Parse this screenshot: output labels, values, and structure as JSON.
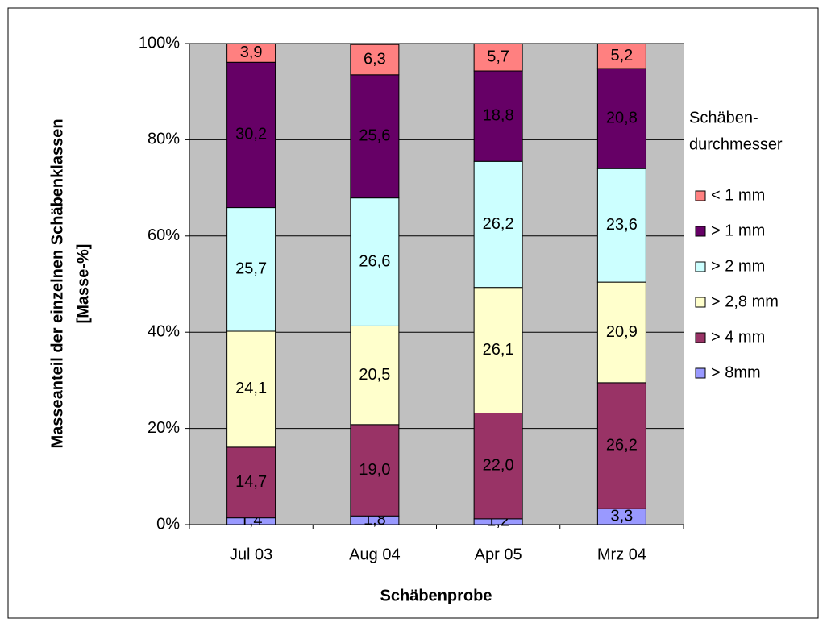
{
  "chart_data": {
    "type": "stacked_bar",
    "x_label": "Schäbenprobe",
    "y_label": [
      "Masseanteil der einzelnen Schäbenklassen",
      "[Masse-%]"
    ],
    "legend_title": [
      "Schäben-",
      "durchmesser"
    ],
    "legend": "right",
    "categories": [
      "Jul 03",
      "Aug 04",
      "Apr 05",
      "Mrz 04"
    ],
    "series": [
      {
        "name": "> 8mm",
        "color": "#9999ff",
        "values": [
          1.4,
          1.8,
          1.2,
          3.3
        ],
        "value_labels": [
          "1,4",
          "1,8",
          "1,2",
          "3,3"
        ]
      },
      {
        "name": "> 4 mm",
        "color": "#993366",
        "values": [
          14.7,
          19.0,
          22.0,
          26.2
        ],
        "value_labels": [
          "14,7",
          "19,0",
          "22,0",
          "26,2"
        ]
      },
      {
        "name": "> 2,8 mm",
        "color": "#ffffcc",
        "values": [
          24.1,
          20.5,
          26.1,
          20.9
        ],
        "value_labels": [
          "24,1",
          "20,5",
          "26,1",
          "20,9"
        ]
      },
      {
        "name": "> 2 mm",
        "color": "#ccffff",
        "values": [
          25.7,
          26.6,
          26.2,
          23.6
        ],
        "value_labels": [
          "25,7",
          "26,6",
          "26,2",
          "23,6"
        ]
      },
      {
        "name": "> 1 mm",
        "color": "#660066",
        "values": [
          30.2,
          25.6,
          18.8,
          20.8
        ],
        "value_labels": [
          "30,2",
          "25,6",
          "18,8",
          "20,8"
        ]
      },
      {
        "name": "< 1 mm",
        "color": "#ff8080",
        "values": [
          3.9,
          6.3,
          5.7,
          5.2
        ],
        "value_labels": [
          "3,9",
          "6,3",
          "5,7",
          "5,2"
        ]
      }
    ],
    "ylim": [
      0,
      100
    ],
    "yticks": [
      {
        "value": 0,
        "label": "0%"
      },
      {
        "value": 20,
        "label": "20%"
      },
      {
        "value": 40,
        "label": "40%"
      },
      {
        "value": 60,
        "label": "60%"
      },
      {
        "value": 80,
        "label": "80%"
      },
      {
        "value": 100,
        "label": "100%"
      }
    ],
    "grid": true
  }
}
